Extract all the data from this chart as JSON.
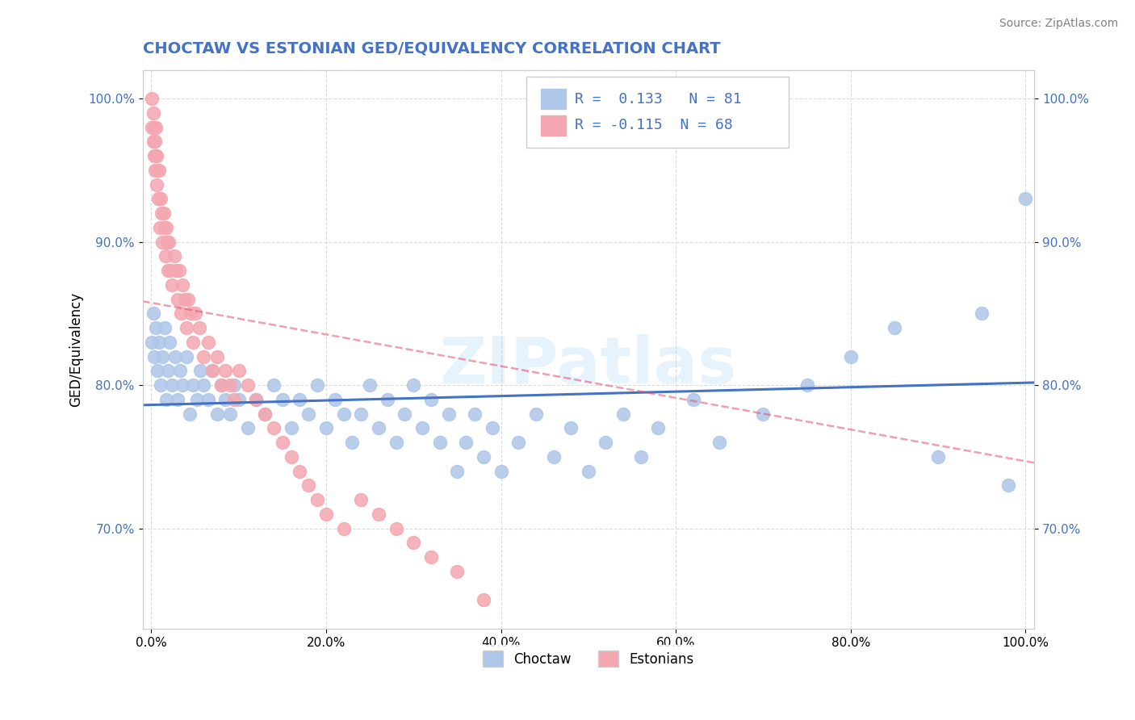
{
  "title": "CHOCTAW VS ESTONIAN GED/EQUIVALENCY CORRELATION CHART",
  "source": "Source: ZipAtlas.com",
  "xlabel": "",
  "ylabel": "GED/Equivalency",
  "xlim": [
    0.0,
    1.0
  ],
  "ylim": [
    0.63,
    1.02
  ],
  "choctaw_R": 0.133,
  "choctaw_N": 81,
  "estonian_R": -0.115,
  "estonian_N": 68,
  "choctaw_color": "#aec6e8",
  "estonian_color": "#f4a7b0",
  "trend_choctaw_color": "#4472c4",
  "trend_estonian_color": "#e05070",
  "background_color": "#ffffff",
  "grid_color": "#cccccc",
  "title_color": "#4472c4",
  "watermark": "ZIPatlas",
  "x_tick_labels": [
    "0.0%",
    "20.0%",
    "40.0%",
    "60.0%",
    "80.0%",
    "100.0%"
  ],
  "x_tick_vals": [
    0.0,
    0.2,
    0.4,
    0.6,
    0.8,
    1.0
  ],
  "y_tick_labels": [
    "70.0%",
    "80.0%",
    "90.0%",
    "100.0%"
  ],
  "y_tick_vals": [
    0.7,
    0.8,
    0.9,
    1.0
  ],
  "choctaw_x": [
    0.001,
    0.002,
    0.003,
    0.005,
    0.007,
    0.009,
    0.011,
    0.013,
    0.015,
    0.017,
    0.019,
    0.021,
    0.024,
    0.027,
    0.03,
    0.033,
    0.036,
    0.04,
    0.044,
    0.048,
    0.052,
    0.056,
    0.06,
    0.065,
    0.07,
    0.075,
    0.08,
    0.085,
    0.09,
    0.095,
    0.1,
    0.11,
    0.12,
    0.13,
    0.14,
    0.15,
    0.16,
    0.17,
    0.18,
    0.19,
    0.2,
    0.21,
    0.22,
    0.23,
    0.24,
    0.25,
    0.26,
    0.27,
    0.28,
    0.29,
    0.3,
    0.31,
    0.32,
    0.33,
    0.34,
    0.35,
    0.36,
    0.37,
    0.38,
    0.39,
    0.4,
    0.42,
    0.44,
    0.46,
    0.48,
    0.5,
    0.52,
    0.54,
    0.56,
    0.58,
    0.62,
    0.65,
    0.7,
    0.75,
    0.8,
    0.85,
    0.9,
    0.95,
    0.98,
    1.0
  ],
  "choctaw_y": [
    0.83,
    0.85,
    0.82,
    0.84,
    0.81,
    0.83,
    0.8,
    0.82,
    0.84,
    0.79,
    0.81,
    0.83,
    0.8,
    0.82,
    0.79,
    0.81,
    0.8,
    0.82,
    0.78,
    0.8,
    0.79,
    0.81,
    0.8,
    0.79,
    0.81,
    0.78,
    0.8,
    0.79,
    0.78,
    0.8,
    0.79,
    0.77,
    0.79,
    0.78,
    0.8,
    0.79,
    0.77,
    0.79,
    0.78,
    0.8,
    0.77,
    0.79,
    0.78,
    0.76,
    0.78,
    0.8,
    0.77,
    0.79,
    0.76,
    0.78,
    0.8,
    0.77,
    0.79,
    0.76,
    0.78,
    0.74,
    0.76,
    0.78,
    0.75,
    0.77,
    0.74,
    0.76,
    0.78,
    0.75,
    0.77,
    0.74,
    0.76,
    0.78,
    0.75,
    0.77,
    0.79,
    0.76,
    0.78,
    0.8,
    0.82,
    0.84,
    0.75,
    0.85,
    0.73,
    0.93
  ],
  "estonian_x": [
    0.001,
    0.001,
    0.002,
    0.002,
    0.003,
    0.003,
    0.004,
    0.004,
    0.005,
    0.005,
    0.006,
    0.006,
    0.007,
    0.008,
    0.009,
    0.01,
    0.011,
    0.012,
    0.013,
    0.014,
    0.015,
    0.016,
    0.017,
    0.018,
    0.019,
    0.02,
    0.022,
    0.024,
    0.026,
    0.028,
    0.03,
    0.032,
    0.034,
    0.036,
    0.038,
    0.04,
    0.042,
    0.045,
    0.048,
    0.05,
    0.055,
    0.06,
    0.065,
    0.07,
    0.075,
    0.08,
    0.085,
    0.09,
    0.095,
    0.1,
    0.11,
    0.12,
    0.13,
    0.14,
    0.15,
    0.16,
    0.17,
    0.18,
    0.19,
    0.2,
    0.22,
    0.24,
    0.26,
    0.28,
    0.3,
    0.32,
    0.35,
    0.38
  ],
  "estonian_y": [
    1.0,
    0.98,
    0.97,
    0.99,
    0.96,
    0.98,
    0.95,
    0.97,
    0.96,
    0.98,
    0.94,
    0.96,
    0.95,
    0.93,
    0.95,
    0.91,
    0.93,
    0.92,
    0.9,
    0.92,
    0.91,
    0.89,
    0.91,
    0.9,
    0.88,
    0.9,
    0.88,
    0.87,
    0.89,
    0.88,
    0.86,
    0.88,
    0.85,
    0.87,
    0.86,
    0.84,
    0.86,
    0.85,
    0.83,
    0.85,
    0.84,
    0.82,
    0.83,
    0.81,
    0.82,
    0.8,
    0.81,
    0.8,
    0.79,
    0.81,
    0.8,
    0.79,
    0.78,
    0.77,
    0.76,
    0.75,
    0.74,
    0.73,
    0.72,
    0.71,
    0.7,
    0.72,
    0.71,
    0.7,
    0.69,
    0.68,
    0.67,
    0.65
  ]
}
